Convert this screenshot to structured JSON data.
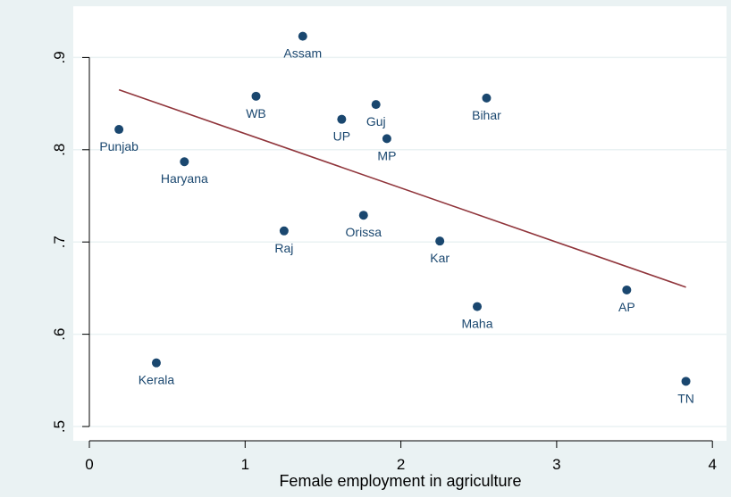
{
  "colors": {
    "background": "#eaf2f3",
    "plot_background": "#ffffff",
    "grid": "#eaf2f3",
    "marker": "#1a476f",
    "fit_line": "#90353b",
    "axis": "#000000"
  },
  "chart_data": {
    "type": "scatter",
    "title": "",
    "xlabel": "Female employment in agriculture",
    "ylabel": "",
    "xlim": [
      -0.05,
      4.1
    ],
    "ylim": [
      0.48,
      0.945
    ],
    "xticks": [
      0,
      1,
      2,
      3,
      4
    ],
    "xtick_labels": [
      "0",
      "1",
      "2",
      "3",
      "4"
    ],
    "yticks": [
      0.5,
      0.6,
      0.7,
      0.8,
      0.9
    ],
    "ytick_labels": [
      ".5",
      ".6",
      ".7",
      ".8",
      ".9"
    ],
    "grid": true,
    "legend": "none",
    "points": [
      {
        "label": "Assam",
        "x": 1.37,
        "y": 0.923
      },
      {
        "label": "WB",
        "x": 1.07,
        "y": 0.858
      },
      {
        "label": "Guj",
        "x": 1.84,
        "y": 0.849
      },
      {
        "label": "Bihar",
        "x": 2.55,
        "y": 0.856
      },
      {
        "label": "UP",
        "x": 1.62,
        "y": 0.833
      },
      {
        "label": "Punjab",
        "x": 0.19,
        "y": 0.822
      },
      {
        "label": "MP",
        "x": 1.91,
        "y": 0.812
      },
      {
        "label": "Haryana",
        "x": 0.61,
        "y": 0.787
      },
      {
        "label": "Orissa",
        "x": 1.76,
        "y": 0.729
      },
      {
        "label": "Raj",
        "x": 1.25,
        "y": 0.712
      },
      {
        "label": "Kar",
        "x": 2.25,
        "y": 0.701
      },
      {
        "label": "AP",
        "x": 3.45,
        "y": 0.648
      },
      {
        "label": "Maha",
        "x": 2.49,
        "y": 0.63
      },
      {
        "label": "Kerala",
        "x": 0.43,
        "y": 0.569
      },
      {
        "label": "TN",
        "x": 3.83,
        "y": 0.549
      }
    ],
    "fit_line": {
      "x": [
        0.19,
        3.83
      ],
      "y": [
        0.865,
        0.651
      ]
    }
  }
}
